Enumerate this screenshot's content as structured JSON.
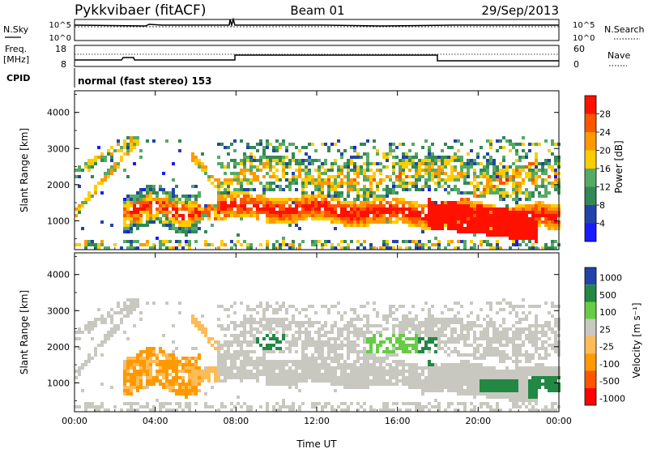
{
  "header": {
    "radar": "Pykkvibaer (fitACF)",
    "beam": "Beam 01",
    "date": "29/Sep/2013"
  },
  "top_panels": {
    "nsky_label": "N.Sky",
    "nsky_ticks": [
      "10^5",
      "10^0"
    ],
    "nsearch_label": "N.Search",
    "freq_label": "Freq.",
    "freq_unit": "[MHz]",
    "freq_ticks": [
      "18",
      "8"
    ],
    "nave_label": "Nave",
    "nave_ticks": [
      "60",
      "0"
    ],
    "cpid_label": "CPID",
    "cpid_text": "normal (fast stereo) 153"
  },
  "colors": {
    "power": [
      "#1a1aff",
      "#2244aa",
      "#338855",
      "#55aa66",
      "#ffcc00",
      "#ff9900",
      "#ff5500",
      "#ff1100"
    ],
    "velocity": [
      "#ff0000",
      "#ff5500",
      "#ff9900",
      "#ffbb55",
      "#c8c8c0",
      "#66cc44",
      "#228844",
      "#2244aa"
    ]
  },
  "chart_data": [
    {
      "type": "heatmap",
      "name": "power",
      "ylabel": "Slant Range [km]",
      "yticks": [
        "1000",
        "2000",
        "3000",
        "4000"
      ],
      "ylim": [
        200,
        4600
      ],
      "colorbar_label": "Power [dB]",
      "colorbar_ticks": [
        "4",
        "8",
        "12",
        "16",
        "20",
        "24",
        "28"
      ]
    },
    {
      "type": "heatmap",
      "name": "velocity",
      "ylabel": "Slant Range [km]",
      "yticks": [
        "1000",
        "2000",
        "3000",
        "4000"
      ],
      "ylim": [
        200,
        4600
      ],
      "colorbar_label": "Velocity [m s⁻¹]",
      "colorbar_ticks": [
        "1000",
        "500",
        "100",
        "25",
        "-25",
        "-100",
        "-500",
        "-1000"
      ],
      "xlabel": "Time UT",
      "xticks": [
        "00:00",
        "04:00",
        "08:00",
        "12:00",
        "16:00",
        "20:00",
        "00:00"
      ]
    }
  ]
}
